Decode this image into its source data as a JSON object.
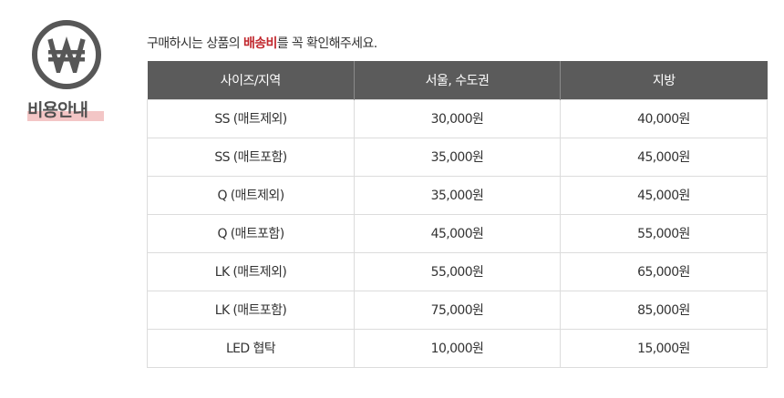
{
  "badge": {
    "icon": "won-sign-icon",
    "label": "비용안내",
    "icon_color": "#575757",
    "underline_color": "#f3c6c6"
  },
  "notice": {
    "before": "구매하시는 상품의 ",
    "highlight": "배송비",
    "after": "를 꼭 확인해주세요.",
    "highlight_color": "#c1272d"
  },
  "table": {
    "headers": [
      "사이즈/지역",
      "서울, 수도권",
      "지방"
    ],
    "header_bg": "#5b5b5b",
    "rows": [
      [
        "SS (매트제외)",
        "30,000원",
        "40,000원"
      ],
      [
        "SS (매트포함)",
        "35,000원",
        "45,000원"
      ],
      [
        "Q (매트제외)",
        "35,000원",
        "45,000원"
      ],
      [
        "Q (매트포함)",
        "45,000원",
        "55,000원"
      ],
      [
        "LK (매트제외)",
        "55,000원",
        "65,000원"
      ],
      [
        "LK (매트포함)",
        "75,000원",
        "85,000원"
      ],
      [
        "LED 협탁",
        "10,000원",
        "15,000원"
      ]
    ]
  }
}
